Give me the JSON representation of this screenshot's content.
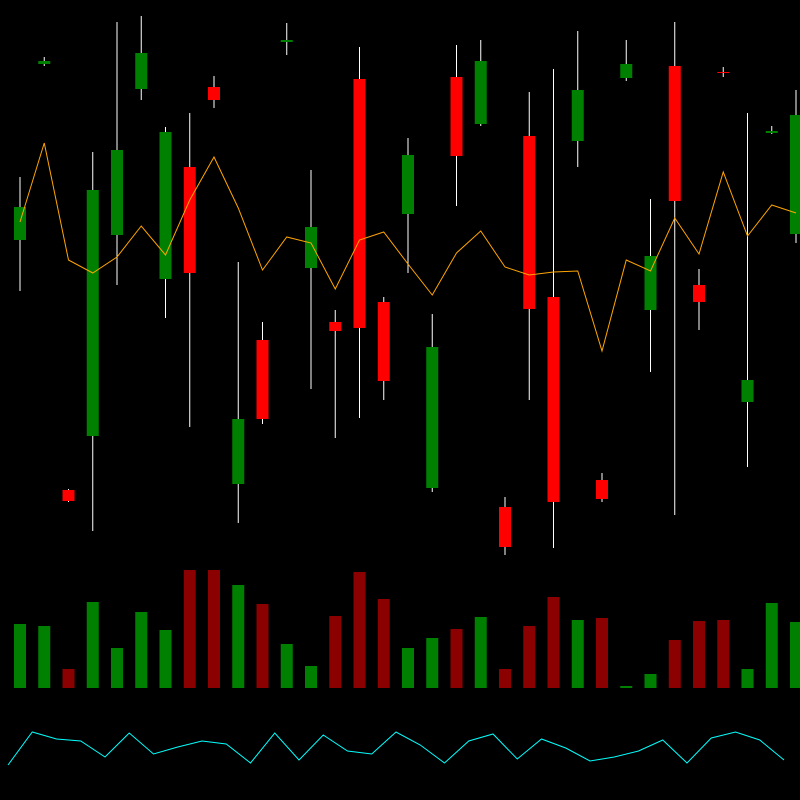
{
  "chart_data": [
    {
      "type": "candlestick",
      "open": [
        320,
        496,
        70,
        124,
        325,
        471,
        281,
        393,
        473,
        76,
        220,
        518,
        292,
        238,
        481,
        258,
        346,
        72,
        483,
        436,
        53,
        424,
        263,
        419,
        80,
        482,
        250,
        494,
        275,
        488,
        158,
        427,
        326
      ],
      "high": [
        383,
        503,
        71,
        408,
        538,
        544,
        433,
        447,
        484,
        298,
        238,
        537,
        390,
        250,
        513,
        263,
        422,
        246,
        515,
        520,
        63,
        468,
        491,
        529,
        87,
        520,
        361,
        538,
        291,
        493,
        447,
        434,
        470
      ],
      "low": [
        269,
        494,
        58,
        29,
        275,
        460,
        242,
        133,
        452,
        37,
        136,
        505,
        171,
        122,
        142,
        160,
        287,
        68,
        354,
        434,
        5,
        160,
        12,
        393,
        58,
        479,
        188,
        45,
        230,
        483,
        93,
        426,
        317
      ],
      "close": [
        353,
        499,
        59,
        370,
        410,
        507,
        428,
        287,
        460,
        141,
        141,
        520,
        333,
        229,
        232,
        179,
        405,
        213,
        404,
        499,
        13,
        251,
        58,
        470,
        61,
        496,
        304,
        359,
        258,
        487,
        180,
        429,
        445
      ],
      "up_color": "#008000",
      "down_color": "#ff0000",
      "ylim": [
        0,
        560
      ],
      "line": {
        "color": "#ffa500",
        "values": [
          338,
          417,
          300,
          287,
          303,
          334,
          305,
          360,
          403,
          352,
          290,
          323,
          317,
          271,
          320,
          328,
          296,
          265,
          307,
          329,
          293,
          285,
          288,
          289,
          209,
          300,
          289,
          342,
          306,
          388,
          324,
          355,
          347
        ]
      }
    },
    {
      "type": "bar",
      "values": [
        64,
        62,
        19,
        86,
        40,
        76,
        58,
        118,
        118,
        103,
        84,
        44,
        22,
        72,
        116,
        89,
        40,
        50,
        59,
        71,
        19,
        62,
        91,
        68,
        70,
        2,
        14,
        48,
        67,
        68,
        19,
        85,
        66
      ],
      "up_color": "#008000",
      "down_color": "#8b0000",
      "ylim": [
        0,
        140
      ]
    },
    {
      "type": "line",
      "values": [
        35,
        68,
        61,
        59,
        43,
        67,
        46,
        53,
        59,
        56,
        37,
        67,
        40,
        65,
        49,
        46,
        68,
        55,
        37,
        59,
        66,
        41,
        61,
        52,
        39,
        43,
        49,
        60,
        37,
        62,
        68,
        60,
        40
      ],
      "color": "#00ffff",
      "ylim": [
        0,
        100
      ]
    }
  ]
}
